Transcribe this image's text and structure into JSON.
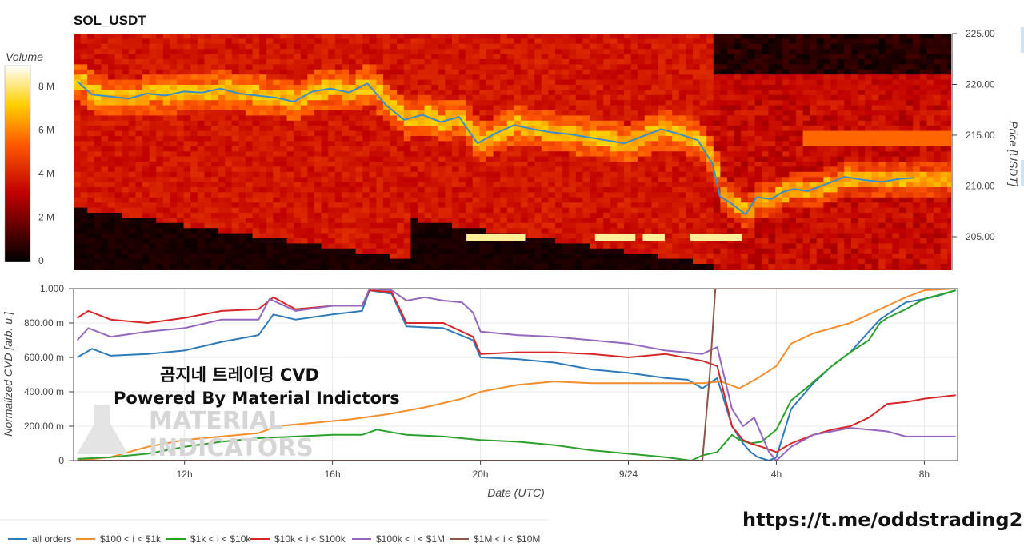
{
  "chart_data": [
    {
      "type": "heatmap",
      "title": "SOL_USDT",
      "colorbar": {
        "title": "Volume",
        "ticks": [
          "0",
          "2 M",
          "4 M",
          "6 M",
          "8 M"
        ],
        "tick_values": [
          0,
          2,
          4,
          6,
          8
        ],
        "range_millions": [
          0,
          9
        ]
      },
      "y_axis": {
        "title": "Price [USDT]",
        "side": "right",
        "ticks": [
          "205.00",
          "210.00",
          "215.00",
          "220.00",
          "225.00"
        ],
        "tick_values": [
          205,
          210,
          215,
          220,
          225
        ],
        "range": [
          202.5,
          225.0
        ]
      },
      "price_series": {
        "color": "#3b8fc8",
        "points": [
          [
            9.1,
            220.3
          ],
          [
            9.5,
            219.0
          ],
          [
            10.0,
            218.8
          ],
          [
            10.5,
            218.6
          ],
          [
            11.0,
            219.1
          ],
          [
            11.5,
            218.9
          ],
          [
            12.0,
            219.3
          ],
          [
            12.5,
            219.2
          ],
          [
            13.0,
            219.6
          ],
          [
            13.5,
            219.1
          ],
          [
            14.0,
            218.9
          ],
          [
            14.5,
            218.7
          ],
          [
            15.0,
            218.3
          ],
          [
            15.5,
            219.3
          ],
          [
            16.0,
            219.6
          ],
          [
            16.5,
            219.2
          ],
          [
            17.0,
            220.1
          ],
          [
            17.5,
            218.0
          ],
          [
            18.0,
            216.5
          ],
          [
            18.5,
            217.0
          ],
          [
            19.0,
            216.3
          ],
          [
            19.5,
            216.8
          ],
          [
            20.0,
            214.2
          ],
          [
            20.5,
            215.2
          ],
          [
            21.0,
            216.0
          ],
          [
            21.5,
            215.6
          ],
          [
            22.0,
            215.3
          ],
          [
            22.5,
            215.1
          ],
          [
            23.0,
            214.8
          ],
          [
            23.5,
            214.5
          ],
          [
            24.0,
            214.2
          ],
          [
            24.5,
            214.9
          ],
          [
            25.0,
            215.6
          ],
          [
            25.5,
            215.1
          ],
          [
            26.0,
            214.5
          ],
          [
            26.4,
            212.2
          ],
          [
            26.6,
            209.0
          ],
          [
            26.9,
            208.3
          ],
          [
            27.3,
            207.2
          ],
          [
            27.6,
            208.9
          ],
          [
            28.0,
            208.7
          ],
          [
            28.3,
            209.4
          ],
          [
            28.6,
            209.7
          ],
          [
            29.0,
            209.5
          ],
          [
            29.5,
            210.2
          ],
          [
            30.0,
            210.9
          ],
          [
            30.5,
            210.6
          ],
          [
            31.0,
            210.4
          ],
          [
            31.5,
            210.7
          ],
          [
            31.9,
            210.8
          ]
        ]
      },
      "bright_blocks": [
        {
          "t_start": 19.7,
          "t_end": 21.3,
          "price": 205.0
        },
        {
          "t_start": 23.2,
          "t_end": 24.3,
          "price": 205.0
        },
        {
          "t_start": 24.5,
          "t_end": 25.1,
          "price": 205.0
        },
        {
          "t_start": 25.8,
          "t_end": 27.2,
          "price": 205.0
        }
      ]
    },
    {
      "type": "line",
      "title": "",
      "xlabel": "Date (UTC)",
      "ylabel": "Normalized CVD [arb. u.]",
      "x_ticks": [
        "12h",
        "16h",
        "20h",
        "9/24",
        "4h",
        "8h"
      ],
      "x_tick_values": [
        12,
        16,
        20,
        24,
        28,
        32
      ],
      "xlim": [
        9.0,
        32.9
      ],
      "y_ticks": [
        "0",
        "200.00 m",
        "400.00 m",
        "600.00 m",
        "800.00 m",
        "1.000"
      ],
      "y_tick_values": [
        0,
        0.2,
        0.4,
        0.6,
        0.8,
        1.0
      ],
      "ylim": [
        0,
        1.0
      ],
      "grid": true,
      "legend_placement": "bottom",
      "series": [
        {
          "name": "all orders",
          "color": "#2f7bb8",
          "points": [
            [
              9.1,
              0.6
            ],
            [
              9.5,
              0.65
            ],
            [
              10.0,
              0.61
            ],
            [
              11.0,
              0.62
            ],
            [
              12.0,
              0.64
            ],
            [
              13.0,
              0.69
            ],
            [
              14.0,
              0.73
            ],
            [
              14.4,
              0.85
            ],
            [
              15.0,
              0.82
            ],
            [
              16.0,
              0.85
            ],
            [
              16.8,
              0.87
            ],
            [
              17.0,
              0.99
            ],
            [
              17.6,
              0.97
            ],
            [
              18.0,
              0.78
            ],
            [
              19.0,
              0.77
            ],
            [
              19.8,
              0.7
            ],
            [
              20.0,
              0.6
            ],
            [
              21.0,
              0.59
            ],
            [
              22.0,
              0.57
            ],
            [
              23.0,
              0.53
            ],
            [
              24.0,
              0.51
            ],
            [
              25.0,
              0.48
            ],
            [
              25.6,
              0.47
            ],
            [
              26.0,
              0.42
            ],
            [
              26.4,
              0.48
            ],
            [
              26.8,
              0.2
            ],
            [
              27.1,
              0.1
            ],
            [
              27.3,
              0.05
            ],
            [
              27.5,
              0.02
            ],
            [
              27.8,
              0.0
            ],
            [
              28.0,
              0.02
            ],
            [
              28.4,
              0.3
            ],
            [
              29.0,
              0.45
            ],
            [
              29.5,
              0.55
            ],
            [
              30.0,
              0.63
            ],
            [
              30.5,
              0.75
            ],
            [
              30.8,
              0.82
            ],
            [
              31.0,
              0.85
            ],
            [
              31.5,
              0.92
            ],
            [
              32.0,
              0.94
            ],
            [
              32.4,
              0.96
            ],
            [
              32.85,
              0.99
            ]
          ]
        },
        {
          "name": "$100 < i < $1k",
          "color": "#f28e2b",
          "points": [
            [
              9.1,
              0.0
            ],
            [
              10.0,
              0.02
            ],
            [
              11.0,
              0.08
            ],
            [
              12.0,
              0.12
            ],
            [
              13.0,
              0.14
            ],
            [
              14.0,
              0.16
            ],
            [
              14.5,
              0.2
            ],
            [
              15.5,
              0.22
            ],
            [
              16.5,
              0.24
            ],
            [
              17.5,
              0.27
            ],
            [
              18.5,
              0.31
            ],
            [
              19.5,
              0.36
            ],
            [
              20.0,
              0.4
            ],
            [
              21.0,
              0.44
            ],
            [
              22.0,
              0.46
            ],
            [
              23.0,
              0.45
            ],
            [
              24.0,
              0.45
            ],
            [
              25.0,
              0.45
            ],
            [
              26.0,
              0.45
            ],
            [
              26.5,
              0.46
            ],
            [
              27.0,
              0.42
            ],
            [
              27.5,
              0.48
            ],
            [
              28.0,
              0.55
            ],
            [
              28.4,
              0.68
            ],
            [
              29.0,
              0.74
            ],
            [
              30.0,
              0.8
            ],
            [
              30.5,
              0.85
            ],
            [
              31.0,
              0.9
            ],
            [
              31.5,
              0.95
            ],
            [
              32.0,
              0.99
            ],
            [
              32.85,
              1.0
            ]
          ]
        },
        {
          "name": "$1k < i < $10k",
          "color": "#2ca02c",
          "points": [
            [
              9.1,
              0.01
            ],
            [
              10.0,
              0.02
            ],
            [
              11.0,
              0.04
            ],
            [
              12.0,
              0.08
            ],
            [
              13.0,
              0.11
            ],
            [
              14.0,
              0.13
            ],
            [
              15.0,
              0.14
            ],
            [
              16.0,
              0.15
            ],
            [
              16.8,
              0.15
            ],
            [
              17.2,
              0.18
            ],
            [
              18.0,
              0.15
            ],
            [
              19.0,
              0.14
            ],
            [
              20.0,
              0.12
            ],
            [
              21.0,
              0.11
            ],
            [
              22.0,
              0.09
            ],
            [
              23.0,
              0.06
            ],
            [
              24.0,
              0.04
            ],
            [
              25.0,
              0.02
            ],
            [
              25.7,
              0.0
            ],
            [
              26.0,
              0.03
            ],
            [
              26.4,
              0.05
            ],
            [
              26.8,
              0.15
            ],
            [
              27.0,
              0.12
            ],
            [
              27.3,
              0.1
            ],
            [
              27.6,
              0.11
            ],
            [
              28.0,
              0.18
            ],
            [
              28.4,
              0.35
            ],
            [
              28.8,
              0.42
            ],
            [
              29.5,
              0.55
            ],
            [
              30.0,
              0.63
            ],
            [
              30.5,
              0.7
            ],
            [
              30.8,
              0.8
            ],
            [
              31.0,
              0.83
            ],
            [
              31.5,
              0.88
            ],
            [
              32.0,
              0.94
            ],
            [
              32.85,
              0.99
            ]
          ]
        },
        {
          "name": "$10k < i < $100k",
          "color": "#d62728",
          "points": [
            [
              9.1,
              0.83
            ],
            [
              9.4,
              0.87
            ],
            [
              10.0,
              0.82
            ],
            [
              11.0,
              0.8
            ],
            [
              12.0,
              0.83
            ],
            [
              13.0,
              0.87
            ],
            [
              14.0,
              0.88
            ],
            [
              14.4,
              0.95
            ],
            [
              15.0,
              0.88
            ],
            [
              16.0,
              0.9
            ],
            [
              16.8,
              0.9
            ],
            [
              17.0,
              0.99
            ],
            [
              17.6,
              0.98
            ],
            [
              18.0,
              0.8
            ],
            [
              19.0,
              0.8
            ],
            [
              19.8,
              0.72
            ],
            [
              20.0,
              0.62
            ],
            [
              21.0,
              0.63
            ],
            [
              22.0,
              0.63
            ],
            [
              23.0,
              0.62
            ],
            [
              24.0,
              0.6
            ],
            [
              25.0,
              0.62
            ],
            [
              26.0,
              0.58
            ],
            [
              26.4,
              0.55
            ],
            [
              26.8,
              0.2
            ],
            [
              27.1,
              0.12
            ],
            [
              27.3,
              0.1
            ],
            [
              27.6,
              0.08
            ],
            [
              28.0,
              0.05
            ],
            [
              28.4,
              0.1
            ],
            [
              29.0,
              0.15
            ],
            [
              29.5,
              0.18
            ],
            [
              30.0,
              0.2
            ],
            [
              30.5,
              0.25
            ],
            [
              31.0,
              0.33
            ],
            [
              31.5,
              0.34
            ],
            [
              32.0,
              0.36
            ],
            [
              32.85,
              0.38
            ]
          ]
        },
        {
          "name": "$100k < i < $1M",
          "color": "#9467bd",
          "points": [
            [
              9.1,
              0.7
            ],
            [
              9.4,
              0.77
            ],
            [
              10.0,
              0.72
            ],
            [
              11.0,
              0.75
            ],
            [
              12.0,
              0.77
            ],
            [
              13.0,
              0.82
            ],
            [
              14.0,
              0.82
            ],
            [
              14.3,
              0.94
            ],
            [
              15.0,
              0.87
            ],
            [
              16.0,
              0.9
            ],
            [
              16.8,
              0.9
            ],
            [
              17.0,
              1.0
            ],
            [
              17.6,
              0.99
            ],
            [
              18.0,
              0.93
            ],
            [
              18.5,
              0.95
            ],
            [
              19.0,
              0.93
            ],
            [
              19.5,
              0.92
            ],
            [
              19.8,
              0.86
            ],
            [
              20.0,
              0.75
            ],
            [
              21.0,
              0.73
            ],
            [
              22.0,
              0.72
            ],
            [
              23.0,
              0.7
            ],
            [
              24.0,
              0.68
            ],
            [
              25.0,
              0.64
            ],
            [
              26.0,
              0.62
            ],
            [
              26.4,
              0.66
            ],
            [
              26.8,
              0.3
            ],
            [
              27.1,
              0.2
            ],
            [
              27.4,
              0.25
            ],
            [
              27.8,
              0.05
            ],
            [
              28.0,
              0.0
            ],
            [
              28.4,
              0.08
            ],
            [
              29.0,
              0.15
            ],
            [
              29.5,
              0.17
            ],
            [
              30.0,
              0.19
            ],
            [
              30.5,
              0.18
            ],
            [
              31.0,
              0.17
            ],
            [
              31.5,
              0.14
            ],
            [
              32.0,
              0.14
            ],
            [
              32.85,
              0.14
            ]
          ]
        },
        {
          "name": "$1M < i < $10M",
          "color": "#8c564b",
          "points": [
            [
              9.1,
              0.0
            ],
            [
              26.0,
              0.0
            ],
            [
              26.2,
              0.5
            ],
            [
              26.35,
              1.0
            ],
            [
              32.85,
              1.0
            ]
          ]
        }
      ]
    }
  ],
  "annotations": {
    "cvd_line1": "곰지네 트레이딩 CVD",
    "cvd_line2": "Powered By Material Indictors",
    "watermark_line1": "MATERIAL",
    "watermark_line2": "INDICATORS",
    "link": "https://t.me/oddstrading2"
  }
}
